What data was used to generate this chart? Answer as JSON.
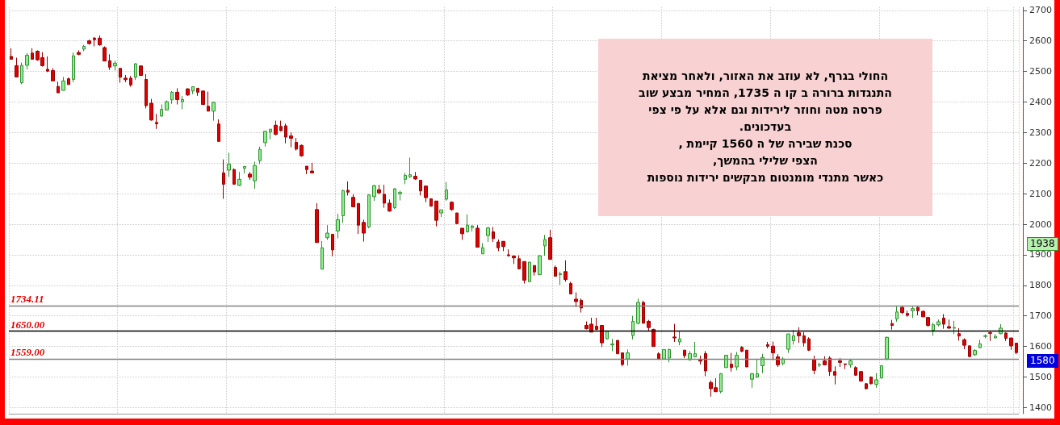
{
  "chart_data": {
    "type": "candlestick",
    "categories": [
      null,
      null,
      null,
      null,
      null,
      null,
      null,
      null,
      null,
      null,
      null,
      null,
      null,
      null,
      null,
      null,
      null,
      null,
      null,
      null,
      null,
      null,
      null,
      null,
      null,
      null,
      null,
      null,
      null,
      null,
      null,
      null,
      null,
      null,
      null,
      null,
      null,
      null,
      null,
      null,
      null,
      null,
      null,
      null,
      null,
      null,
      null,
      null,
      null,
      null,
      null,
      null,
      null,
      null,
      null,
      null,
      null,
      null,
      null,
      null,
      null,
      null,
      null,
      null,
      null,
      null,
      null,
      null,
      null,
      null,
      null,
      null,
      null,
      null,
      null,
      null,
      null,
      null,
      null,
      null,
      null,
      null,
      null,
      null,
      null,
      null,
      null,
      null,
      null,
      null,
      null,
      null,
      null,
      null,
      null,
      null,
      null,
      null,
      null,
      null,
      null,
      null,
      null,
      null,
      null,
      null,
      null,
      null,
      null,
      null,
      null,
      null,
      null,
      null,
      null,
      null,
      null,
      null,
      null,
      null,
      null,
      null,
      null,
      null,
      null,
      null,
      null,
      null,
      null,
      null,
      null,
      null,
      null,
      null,
      null,
      null,
      null,
      null,
      null,
      null,
      null,
      null,
      null,
      null,
      null,
      null,
      null,
      null,
      null,
      null,
      null,
      null,
      null,
      null,
      null,
      null,
      null,
      null,
      null,
      null,
      null,
      null,
      null,
      null,
      null,
      null,
      null,
      null,
      null,
      null,
      null,
      null,
      null,
      null,
      null,
      null,
      null,
      null,
      null,
      null,
      null,
      null,
      null,
      null,
      null,
      null,
      null,
      null,
      null,
      null,
      null,
      null,
      null,
      null,
      null
    ],
    "ohlc": [
      [
        2549,
        2576,
        2540,
        2540
      ],
      [
        2519,
        2545,
        2482,
        2482
      ],
      [
        2463,
        2529,
        2458,
        2520
      ],
      [
        2520,
        2560,
        2507,
        2553
      ],
      [
        2560,
        2576,
        2540,
        2540
      ],
      [
        2566,
        2569,
        2535,
        2538
      ],
      [
        2545,
        2563,
        2516,
        2519
      ],
      [
        2507,
        2549,
        2498,
        2501
      ],
      [
        2503,
        2511,
        2469,
        2469
      ],
      [
        2451,
        2467,
        2430,
        2430
      ],
      [
        2438,
        2482,
        2438,
        2469
      ],
      [
        2476,
        2480,
        2457,
        2457
      ],
      [
        2474,
        2562,
        2465,
        2551
      ],
      [
        2562,
        2569,
        2553,
        2556
      ],
      [
        2573,
        2587,
        2566,
        2582
      ],
      [
        2600,
        2604,
        2588,
        2591
      ],
      [
        2609,
        2613,
        2582,
        2604
      ],
      [
        2609,
        2618,
        2584,
        2587
      ],
      [
        2578,
        2582,
        2534,
        2534
      ],
      [
        2535,
        2556,
        2505,
        2514
      ],
      [
        2518,
        2535,
        2503,
        2527
      ],
      [
        2510,
        2512,
        2463,
        2481
      ],
      [
        2478,
        2488,
        2465,
        2473
      ],
      [
        2478,
        2485,
        2450,
        2456
      ],
      [
        2481,
        2527,
        2472,
        2525
      ],
      [
        2518,
        2520,
        2485,
        2487
      ],
      [
        2474,
        2491,
        2379,
        2388
      ],
      [
        2396,
        2410,
        2339,
        2341
      ],
      [
        2333,
        2361,
        2312,
        2329
      ],
      [
        2354,
        2392,
        2352,
        2376
      ],
      [
        2374,
        2405,
        2374,
        2401
      ],
      [
        2407,
        2436,
        2394,
        2432
      ],
      [
        2432,
        2445,
        2392,
        2408
      ],
      [
        2401,
        2419,
        2376,
        2408
      ],
      [
        2443,
        2445,
        2420,
        2423
      ],
      [
        2436,
        2450,
        2426,
        2450
      ],
      [
        2445,
        2445,
        2420,
        2432
      ],
      [
        2436,
        2436,
        2390,
        2392
      ],
      [
        2386,
        2434,
        2370,
        2370
      ],
      [
        2370,
        2401,
        2339,
        2399
      ],
      [
        2328,
        2343,
        2271,
        2271
      ],
      [
        2168,
        2212,
        2083,
        2131
      ],
      [
        2177,
        2234,
        2155,
        2197
      ],
      [
        2179,
        2183,
        2131,
        2131
      ],
      [
        2127,
        2171,
        2125,
        2147
      ],
      [
        2183,
        2189,
        2166,
        2189
      ],
      [
        2164,
        2171,
        2145,
        2154
      ],
      [
        2142,
        2205,
        2116,
        2192
      ],
      [
        2208,
        2254,
        2197,
        2245
      ],
      [
        2267,
        2306,
        2254,
        2304
      ],
      [
        2302,
        2311,
        2278,
        2311
      ],
      [
        2324,
        2339,
        2291,
        2294
      ],
      [
        2320,
        2339,
        2304,
        2306
      ],
      [
        2322,
        2329,
        2265,
        2285
      ],
      [
        2289,
        2300,
        2252,
        2281
      ],
      [
        2268,
        2282,
        2241,
        2246
      ],
      [
        2258,
        2261,
        2221,
        2224
      ],
      [
        2190,
        2190,
        2164,
        2179
      ],
      [
        2174,
        2201,
        2168,
        2168
      ],
      [
        2048,
        2069,
        1940,
        1940
      ],
      [
        1853,
        1945,
        1853,
        1923
      ],
      [
        1956,
        1997,
        1949,
        1971
      ],
      [
        1967,
        1967,
        1895,
        1916
      ],
      [
        1978,
        2034,
        1954,
        2015
      ],
      [
        2028,
        2113,
        2004,
        2110
      ],
      [
        2111,
        2140,
        2094,
        2105
      ],
      [
        2088,
        2098,
        2057,
        2057
      ],
      [
        2068,
        2068,
        1968,
        1997
      ],
      [
        2006,
        2015,
        1943,
        1971
      ],
      [
        1991,
        2098,
        1987,
        2096
      ],
      [
        2090,
        2129,
        2076,
        2126
      ],
      [
        2113,
        2129,
        2098,
        2103
      ],
      [
        2098,
        2129,
        2054,
        2069
      ],
      [
        2069,
        2081,
        2041,
        2043
      ],
      [
        2054,
        2118,
        2050,
        2116
      ],
      [
        2100,
        2110,
        2078,
        2104
      ],
      [
        2147,
        2168,
        2131,
        2160
      ],
      [
        2155,
        2218,
        2151,
        2162
      ],
      [
        2157,
        2171,
        2145,
        2148
      ],
      [
        2144,
        2144,
        2094,
        2109
      ],
      [
        2125,
        2125,
        2072,
        2087
      ],
      [
        2083,
        2085,
        2059,
        2059
      ],
      [
        2076,
        2076,
        1993,
        2013
      ],
      [
        2037,
        2047,
        2024,
        2047
      ],
      [
        2082,
        2138,
        2077,
        2112
      ],
      [
        2072,
        2075,
        2044,
        2048
      ],
      [
        2037,
        2037,
        2002,
        2002
      ],
      [
        1987,
        1987,
        1949,
        1969
      ],
      [
        1975,
        2032,
        1973,
        1997
      ],
      [
        1989,
        1997,
        1976,
        1994
      ],
      [
        1987,
        1997,
        1925,
        1925
      ],
      [
        1903,
        1938,
        1903,
        1923
      ],
      [
        1963,
        1991,
        1942,
        1988
      ],
      [
        1975,
        1991,
        1942,
        1953
      ],
      [
        1942,
        1950,
        1912,
        1923
      ],
      [
        1944,
        1944,
        1912,
        1927
      ],
      [
        1900,
        1918,
        1894,
        1897
      ],
      [
        1896,
        1898,
        1870,
        1890
      ],
      [
        1887,
        1898,
        1854,
        1854
      ],
      [
        1878,
        1878,
        1806,
        1817
      ],
      [
        1812,
        1876,
        1812,
        1876
      ],
      [
        1865,
        1865,
        1832,
        1844
      ],
      [
        1835,
        1898,
        1835,
        1897
      ],
      [
        1929,
        1965,
        1897,
        1950
      ],
      [
        1956,
        1982,
        1885,
        1885
      ],
      [
        1859,
        1865,
        1828,
        1830
      ],
      [
        1835,
        1845,
        1801,
        1838
      ],
      [
        1845,
        1882,
        1812,
        1819
      ],
      [
        1806,
        1812,
        1772,
        1772
      ],
      [
        1755,
        1777,
        1729,
        1747
      ],
      [
        1751,
        1757,
        1711,
        1726
      ],
      [
        1669,
        1682,
        1656,
        1658
      ],
      [
        1673,
        1694,
        1647,
        1647
      ],
      [
        1666,
        1694,
        1653,
        1656
      ],
      [
        1669,
        1669,
        1598,
        1612
      ],
      [
        1625,
        1651,
        1623,
        1650
      ],
      [
        1605,
        1625,
        1585,
        1608
      ],
      [
        1620,
        1620,
        1576,
        1576
      ],
      [
        1579,
        1579,
        1535,
        1541
      ],
      [
        1559,
        1590,
        1537,
        1579
      ],
      [
        1636,
        1700,
        1623,
        1682
      ],
      [
        1676,
        1757,
        1672,
        1744
      ],
      [
        1744,
        1750,
        1676,
        1676
      ],
      [
        1682,
        1687,
        1650,
        1662
      ],
      [
        1656,
        1658,
        1600,
        1600
      ],
      [
        1576,
        1581,
        1556,
        1559
      ],
      [
        1559,
        1590,
        1559,
        1590
      ],
      [
        1562,
        1593,
        1548,
        1590
      ],
      [
        1631,
        1674,
        1615,
        1628
      ],
      [
        1615,
        1650,
        1604,
        1625
      ],
      [
        1588,
        1588,
        1562,
        1570
      ],
      [
        1557,
        1585,
        1553,
        1577
      ],
      [
        1566,
        1615,
        1564,
        1577
      ],
      [
        1556,
        1570,
        1541,
        1552
      ],
      [
        1577,
        1585,
        1503,
        1520
      ],
      [
        1482,
        1489,
        1436,
        1462
      ],
      [
        1465,
        1496,
        1451,
        1452
      ],
      [
        1452,
        1513,
        1447,
        1511
      ],
      [
        1531,
        1573,
        1531,
        1571
      ],
      [
        1542,
        1579,
        1518,
        1531
      ],
      [
        1533,
        1582,
        1522,
        1571
      ],
      [
        1597,
        1601,
        1582,
        1584
      ],
      [
        1588,
        1588,
        1533,
        1533
      ],
      [
        1493,
        1513,
        1465,
        1511
      ],
      [
        1500,
        1557,
        1497,
        1511
      ],
      [
        1537,
        1576,
        1513,
        1564
      ],
      [
        1606,
        1615,
        1594,
        1601
      ],
      [
        1601,
        1616,
        1555,
        1579
      ],
      [
        1566,
        1575,
        1533,
        1540
      ],
      [
        1544,
        1566,
        1538,
        1559
      ],
      [
        1591,
        1641,
        1579,
        1641
      ],
      [
        1619,
        1654,
        1606,
        1635
      ],
      [
        1645,
        1663,
        1612,
        1635
      ],
      [
        1635,
        1647,
        1600,
        1612
      ],
      [
        1625,
        1630,
        1585,
        1588
      ],
      [
        1557,
        1570,
        1509,
        1522
      ],
      [
        1539,
        1547,
        1533,
        1541
      ],
      [
        1553,
        1568,
        1538,
        1540
      ],
      [
        1562,
        1568,
        1504,
        1518
      ],
      [
        1518,
        1535,
        1476,
        1506
      ],
      [
        1553,
        1562,
        1533,
        1548
      ],
      [
        1543,
        1544,
        1526,
        1541
      ],
      [
        1540,
        1557,
        1531,
        1553
      ],
      [
        1531,
        1535,
        1504,
        1506
      ],
      [
        1518,
        1518,
        1485,
        1487
      ],
      [
        1478,
        1480,
        1459,
        1462
      ],
      [
        1500,
        1502,
        1476,
        1478
      ],
      [
        1476,
        1513,
        1465,
        1491
      ],
      [
        1497,
        1539,
        1495,
        1537
      ],
      [
        1559,
        1632,
        1555,
        1630
      ],
      [
        1675,
        1687,
        1655,
        1669
      ],
      [
        1690,
        1733,
        1681,
        1713
      ],
      [
        1728,
        1733,
        1706,
        1711
      ],
      [
        1708,
        1717,
        1697,
        1702
      ],
      [
        1717,
        1731,
        1693,
        1724
      ],
      [
        1728,
        1733,
        1702,
        1717
      ],
      [
        1715,
        1717,
        1696,
        1697
      ],
      [
        1695,
        1697,
        1664,
        1669
      ],
      [
        1653,
        1678,
        1635,
        1671
      ],
      [
        1671,
        1688,
        1666,
        1681
      ],
      [
        1693,
        1706,
        1658,
        1673
      ],
      [
        1665,
        1688,
        1658,
        1660
      ],
      [
        1660,
        1684,
        1640,
        1662
      ],
      [
        1642,
        1660,
        1619,
        1634
      ],
      [
        1622,
        1627,
        1591,
        1604
      ],
      [
        1602,
        1602,
        1566,
        1567
      ],
      [
        1573,
        1591,
        1569,
        1587
      ],
      [
        1596,
        1622,
        1594,
        1609
      ],
      [
        1633,
        1640,
        1627,
        1635
      ],
      [
        1645,
        1648,
        1618,
        1643
      ],
      [
        1628,
        1640,
        1627,
        1633
      ],
      [
        1642,
        1673,
        1640,
        1660
      ],
      [
        1644,
        1646,
        1618,
        1627
      ],
      [
        1628,
        1628,
        1589,
        1602
      ],
      [
        1611,
        1611,
        1575,
        1580
      ]
    ],
    "ylim": [
      1380,
      2710
    ],
    "yticks": [
      1400,
      1500,
      1600,
      1700,
      1800,
      1900,
      2000,
      2100,
      2200,
      2300,
      2400,
      2500,
      2600,
      2700
    ],
    "tick_labels": "y",
    "grid": true,
    "ref_lines": [
      {
        "axis": "y",
        "value": 1734.11,
        "label": "1734.11",
        "color": "#808080"
      },
      {
        "axis": "y",
        "value": 1650,
        "label": "1650.00",
        "color": "#000000"
      },
      {
        "axis": "y",
        "value": 1559,
        "label": "1559.00",
        "color": "#808080"
      }
    ],
    "annotations": [
      "החולי בגרף, לא  עוזב  את האזור, ולאחר   מציאת\nהתנגדות ברורה  ב קו  ה 1735, המחיר  מבצע  שוב\nפרסה מטה  וחוזר  לירידות וגם  אלא  על פי  צפי\nבעדכונים.\nסכנת שבירה  של ה  1560  קיימת ,\nהצפי שלילי בהמשך,\nכאשר מתנדי מומנטום מבקשים ירידות נוספות",
      "1938",
      "1580"
    ]
  }
}
